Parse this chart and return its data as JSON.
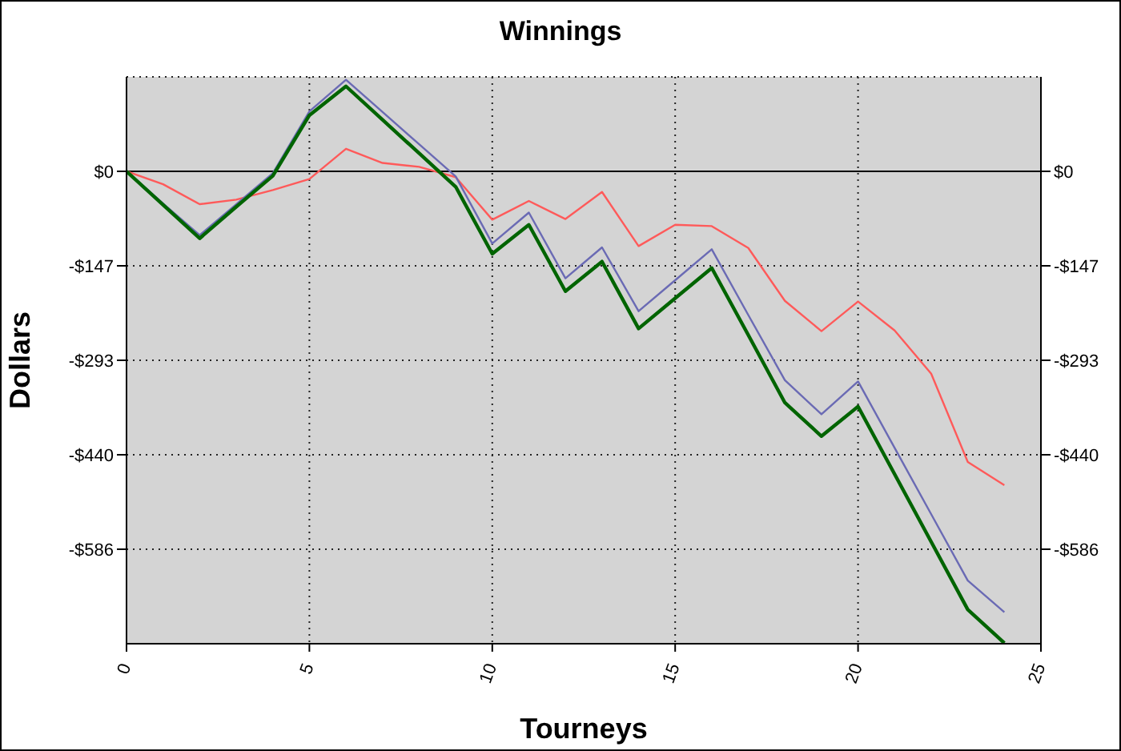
{
  "chart_data": {
    "type": "line",
    "title": "Winnings",
    "xlabel": "Tourneys",
    "ylabel": "Dollars",
    "x": [
      0,
      1,
      2,
      3,
      4,
      5,
      6,
      7,
      8,
      9,
      10,
      11,
      12,
      13,
      14,
      15,
      16,
      17,
      18,
      19,
      20,
      21,
      22,
      23,
      24
    ],
    "series": [
      {
        "color": "#ff5a5a",
        "values": [
          0,
          -20,
          -51,
          -44,
          -29,
          -12,
          35,
          13,
          7,
          -9,
          -75,
          -46,
          -74,
          -32,
          -116,
          -83,
          -85,
          -119,
          -201,
          -248,
          -202,
          -247,
          -314,
          -451,
          -487
        ]
      },
      {
        "color": "#6a6ab4",
        "values": [
          0,
          -50,
          -99,
          -51,
          -3,
          93,
          142,
          92,
          42,
          -8,
          -112,
          -64,
          -166,
          -118,
          -217,
          -169,
          -121,
          -223,
          -324,
          -377,
          -326,
          -429,
          -532,
          -635,
          -684
        ]
      },
      {
        "color": "#006400",
        "values": [
          0,
          -52,
          -104,
          -55,
          -7,
          87,
          132,
          80,
          28,
          -24,
          -128,
          -83,
          -186,
          -140,
          -244,
          -197,
          -150,
          -254,
          -359,
          -411,
          -365,
          -470,
          -575,
          -680,
          -732
        ]
      }
    ],
    "xlim": [
      0,
      25
    ],
    "xticks": [
      0,
      5,
      10,
      15,
      20,
      25
    ],
    "ylim": [
      -733,
      146.6
    ],
    "yticks": [
      {
        "value": 0,
        "label": "$0"
      },
      {
        "value": -146.6,
        "label": "-$147"
      },
      {
        "value": -293.2,
        "label": "-$293"
      },
      {
        "value": -439.8,
        "label": "-$440"
      },
      {
        "value": -586.4,
        "label": "-$586"
      }
    ],
    "y2lim": [
      -733,
      146.6
    ],
    "y2ticks": [
      {
        "value": 0,
        "label": "$0"
      },
      {
        "value": -146.6,
        "label": "-$147"
      },
      {
        "value": -293.2,
        "label": "-$293"
      },
      {
        "value": -439.8,
        "label": "-$440"
      },
      {
        "value": -586.4,
        "label": "-$586"
      }
    ],
    "ref_lines": [
      {
        "axis": "y",
        "value": 0,
        "color": "#000000"
      }
    ],
    "grid": true,
    "marker": "none",
    "line_style": "solid"
  }
}
